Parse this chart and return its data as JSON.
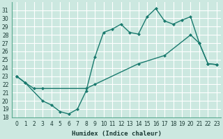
{
  "xlabel": "Humidex (Indice chaleur)",
  "bg_color": "#cce8e0",
  "grid_color": "#ffffff",
  "line_color": "#1a7a6e",
  "xlim": [
    -0.5,
    23.5
  ],
  "ylim": [
    18,
    32
  ],
  "yticks": [
    18,
    19,
    20,
    21,
    22,
    23,
    24,
    25,
    26,
    27,
    28,
    29,
    30,
    31
  ],
  "xticks": [
    0,
    1,
    2,
    3,
    4,
    5,
    6,
    7,
    8,
    9,
    10,
    11,
    12,
    13,
    14,
    15,
    16,
    17,
    18,
    19,
    20,
    21,
    22,
    23
  ],
  "curve1_x": [
    0,
    1,
    3,
    4,
    5,
    6,
    7,
    8,
    9,
    10,
    11,
    12,
    13,
    14,
    15,
    16,
    17,
    18,
    19,
    20,
    21,
    22,
    23
  ],
  "curve1_y": [
    23.0,
    22.2,
    20.0,
    19.5,
    18.7,
    18.4,
    19.0,
    21.2,
    25.3,
    28.3,
    28.7,
    29.3,
    28.3,
    28.1,
    30.2,
    31.2,
    29.7,
    29.3,
    29.8,
    30.2,
    27.0,
    24.5,
    24.4
  ],
  "curve2_x": [
    0,
    1,
    2,
    3,
    8,
    9,
    14,
    17,
    20,
    21,
    22,
    23
  ],
  "curve2_y": [
    23.0,
    22.2,
    21.5,
    21.5,
    21.5,
    22.0,
    24.5,
    25.5,
    28.0,
    27.0,
    24.5,
    24.4
  ],
  "markersize": 2.5,
  "linewidth": 1.0
}
